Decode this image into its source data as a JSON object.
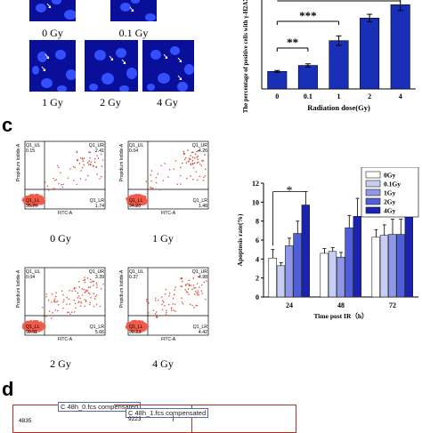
{
  "panel_labels": {
    "c": "c",
    "d": "d"
  },
  "micrographs": [
    {
      "label": "0 Gy"
    },
    {
      "label": "0.1 Gy"
    },
    {
      "label": "1 Gy"
    },
    {
      "label": "2 Gy"
    },
    {
      "label": "4 Gy"
    }
  ],
  "bar_chart_b": {
    "type": "bar",
    "categories": [
      "0",
      "0.1",
      "1",
      "2",
      "4"
    ],
    "values": [
      5.5,
      7.4,
      15.2,
      22.3,
      26.5
    ],
    "errors": [
      0.3,
      0.5,
      1.5,
      1.2,
      1.8
    ],
    "ylabel": "The percentage of positive cells with γ-H2AX",
    "xlabel": "Radiation dose(Gy)",
    "ylim": [
      0,
      28
    ],
    "significance": [
      "**",
      "***"
    ],
    "color": "#1a2fb8"
  },
  "flow_plots": [
    {
      "label": "0 Gy",
      "ul": {
        "name": "Q1_UL",
        "value": "0.15"
      },
      "ur": {
        "name": "Q1_UR",
        "value": "2.41"
      },
      "ll": {
        "name": "Q1_LL",
        "value": "95.70"
      },
      "lr": {
        "name": "Q1_LR",
        "value": "1.74"
      },
      "ylabel": "Propidium Iodide-A",
      "xlabel": "FITC-A"
    },
    {
      "label": "1 Gy",
      "ul": {
        "name": "Q1_UL",
        "value": "0.04"
      },
      "ur": {
        "name": "Q1_UR",
        "value": "4.26"
      },
      "ll": {
        "name": "Q1_LL",
        "value": "94.23"
      },
      "lr": {
        "name": "Q1_LR",
        "value": "1.48"
      },
      "ylabel": "Propidium Iodide-A",
      "xlabel": "FITC-A"
    },
    {
      "label": "2 Gy",
      "ul": {
        "name": "Q1_UL",
        "value": "0.04"
      },
      "ur": {
        "name": "Q1_UR",
        "value": "3.39"
      },
      "ll": {
        "name": "Q1_LL",
        "value": "90.91"
      },
      "lr": {
        "name": "Q1_LR",
        "value": "5.66"
      },
      "ylabel": "Propidium Iodide-A",
      "xlabel": "FITC-A"
    },
    {
      "label": "4 Gy",
      "ul": {
        "name": "Q1_UL",
        "value": "0.37"
      },
      "ur": {
        "name": "Q1_UR",
        "value": "4.98"
      },
      "ll": {
        "name": "Q1_LL",
        "value": "90.23"
      },
      "lr": {
        "name": "Q1_LR",
        "value": "4.42"
      },
      "ylabel": "Propidium Iodide-A",
      "xlabel": "FITC-A"
    }
  ],
  "chart_data": {
    "type": "bar",
    "categories": [
      "24",
      "48",
      "72"
    ],
    "series": [
      {
        "name": "0Gy",
        "values": [
          4.1,
          4.6,
          6.3
        ],
        "errors": [
          0.9,
          0.5,
          0.8
        ],
        "color": "#ffffff"
      },
      {
        "name": "0.1Gy",
        "values": [
          3.3,
          4.8,
          6.5
        ],
        "errors": [
          0.3,
          0.4,
          1.1
        ],
        "color": "#c8cdf4"
      },
      {
        "name": "1Gy",
        "values": [
          5.4,
          4.2,
          6.6
        ],
        "errors": [
          0.8,
          0.5,
          1.6
        ],
        "color": "#8f98e8"
      },
      {
        "name": "2Gy",
        "values": [
          6.7,
          7.3,
          6.6
        ],
        "errors": [
          1.3,
          1.3,
          1.6
        ],
        "color": "#4f5fd8"
      },
      {
        "name": "4Gy",
        "values": [
          9.7,
          8.5,
          9.2
        ],
        "errors": [
          1.4,
          1.9,
          1.0
        ],
        "color": "#1a22b0"
      }
    ],
    "ylabel": "Apoptosis rate(%)",
    "xlabel": "Time post IR（h）",
    "ylim": [
      0,
      12
    ],
    "yticks": [
      0,
      2,
      4,
      6,
      8,
      10,
      12
    ],
    "significance": "*",
    "legend": "top-right"
  },
  "panel_d": {
    "box1_title": "C 48h_0.fcs compensated",
    "box2_title": "C 48h_1.fcs compensated",
    "box1_value": "4835",
    "box2_value": "9223"
  }
}
